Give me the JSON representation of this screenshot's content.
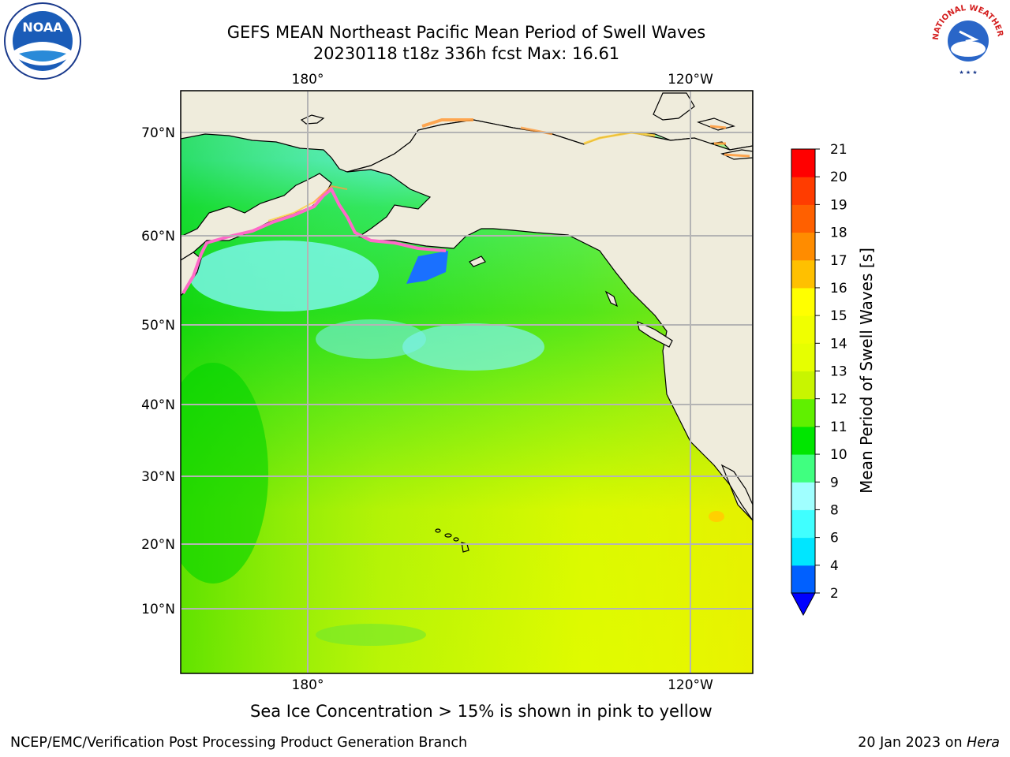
{
  "header": {
    "title_line1": "GEFS MEAN Northeast Pacific Mean Period of Swell Waves",
    "title_line2": "20230118 t18z 336h fcst   Max: 16.61"
  },
  "map": {
    "lon_labels": [
      "180°",
      "120°W"
    ],
    "lat_labels": [
      "70°N",
      "60°N",
      "50°N",
      "40°N",
      "30°N",
      "20°N",
      "10°N"
    ],
    "colors": {
      "land": "#efecdc",
      "grid": "#b0b0b0",
      "coast": "#000000",
      "ice_edge": [
        "#ff69c8",
        "#ff9e40",
        "#ffe040"
      ]
    }
  },
  "colorbar": {
    "label": "Mean Period of Swell Waves [s]",
    "ticks": [
      "2",
      "4",
      "6",
      "8",
      "9",
      "10",
      "11",
      "12",
      "13",
      "14",
      "15",
      "16",
      "17",
      "18",
      "19",
      "20",
      "21"
    ],
    "colors": [
      "#0060ff",
      "#00e6ff",
      "#40ffff",
      "#a0ffff",
      "#40ff80",
      "#00e600",
      "#60f000",
      "#c8f500",
      "#e6ff00",
      "#f0ff00",
      "#ffff00",
      "#ffc000",
      "#ff8c00",
      "#ff6000",
      "#ff3c00",
      "#ff0000"
    ],
    "extend_color": "#0000ff"
  },
  "note": "Sea Ice Concentration > 15% is shown in pink to yellow",
  "footer": {
    "left": "NCEP/EMC/Verification Post Processing Product Generation Branch",
    "right_prefix": "20 Jan 2023 on",
    "right_machine": "Hera"
  },
  "logos": {
    "noaa_text": "NOAA",
    "nws_text": "NATIONAL WEATHER SERVICE",
    "noaa_icon": "noaa-logo-icon",
    "nws_icon": "nws-logo-icon"
  }
}
